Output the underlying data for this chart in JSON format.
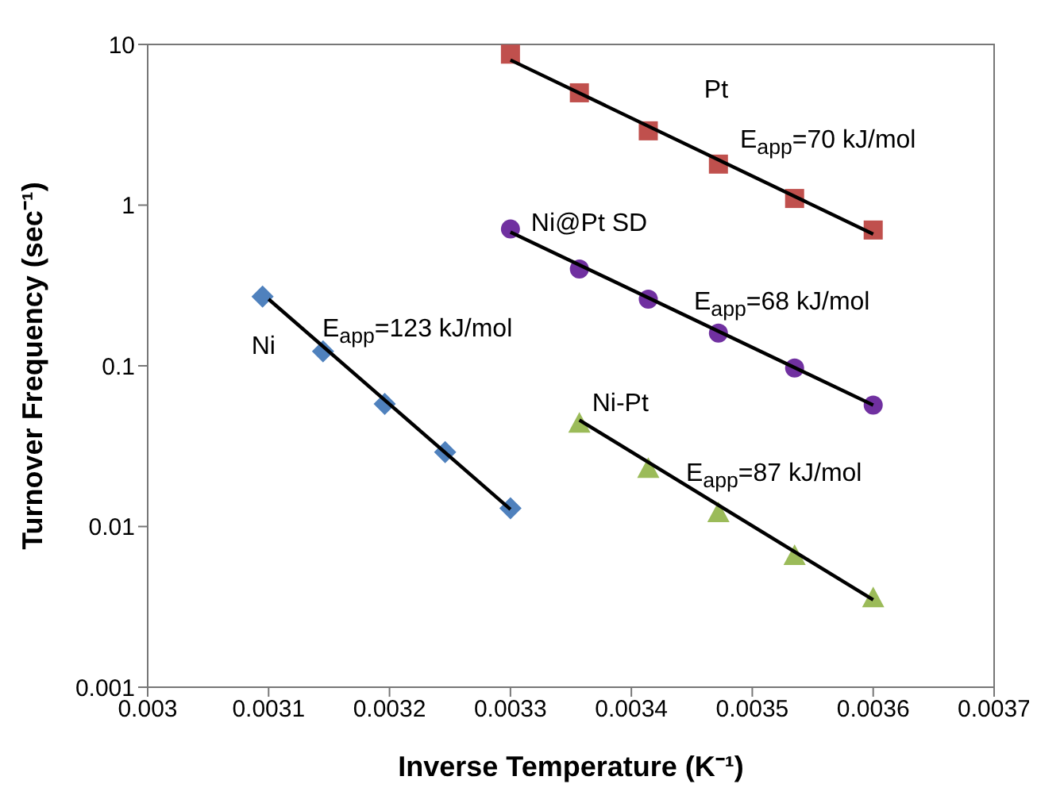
{
  "chart_data": {
    "type": "scatter",
    "xlabel": "Inverse Temperature (K⁻¹)",
    "ylabel": "Turnover Frequency (sec⁻¹)",
    "log": "y",
    "xlim": [
      0.003,
      0.0037
    ],
    "xticks": [
      0.003,
      0.0031,
      0.0032,
      0.0033,
      0.0034,
      0.0035,
      0.0036,
      0.0037
    ],
    "ylim": [
      0.001,
      10
    ],
    "yticks": [
      0.001,
      0.01,
      0.1,
      1,
      10
    ],
    "series": [
      {
        "name": "Pt",
        "color": "#c0504d",
        "marker": "square",
        "x": [
          0.0033,
          0.003357,
          0.003414,
          0.003472,
          0.003535,
          0.0036
        ],
        "values": [
          8.7,
          5.0,
          2.9,
          1.8,
          1.1,
          0.7
        ]
      },
      {
        "name": "Ni@Pt SD",
        "color": "#7030a0",
        "marker": "circle",
        "x": [
          0.0033,
          0.003357,
          0.003414,
          0.003472,
          0.003535,
          0.0036
        ],
        "values": [
          0.71,
          0.4,
          0.26,
          0.16,
          0.097,
          0.057
        ]
      },
      {
        "name": "Ni",
        "color": "#4f81bd",
        "marker": "diamond",
        "x": [
          0.003095,
          0.003145,
          0.003196,
          0.003246,
          0.0033
        ],
        "values": [
          0.27,
          0.123,
          0.058,
          0.029,
          0.013
        ]
      },
      {
        "name": "Ni-Pt",
        "color": "#9bbb59",
        "marker": "triangle",
        "x": [
          0.003357,
          0.003414,
          0.003472,
          0.003535,
          0.0036
        ],
        "values": [
          0.044,
          0.023,
          0.0122,
          0.0066,
          0.0036
        ]
      },
      {
        "type": "line",
        "color": "#000000",
        "marker": "none",
        "x": [
          0.0033,
          0.0036
        ],
        "values": [
          8.0,
          0.66
        ]
      },
      {
        "type": "line",
        "color": "#000000",
        "marker": "none",
        "x": [
          0.0033,
          0.0036
        ],
        "values": [
          0.68,
          0.057
        ]
      },
      {
        "type": "line",
        "color": "#000000",
        "marker": "none",
        "x": [
          0.0031,
          0.0033
        ],
        "values": [
          0.26,
          0.0128
        ]
      },
      {
        "type": "line",
        "color": "#000000",
        "marker": "none",
        "x": [
          0.003357,
          0.0036
        ],
        "values": [
          0.046,
          0.0035
        ]
      }
    ],
    "annotations": [
      "E$_{app}$=70 kJ/mol",
      "E$_{app}$=68 kJ/mol",
      "E$_{app}$=123 kJ/mol",
      "E$_{app}$=87 kJ/mol"
    ]
  }
}
